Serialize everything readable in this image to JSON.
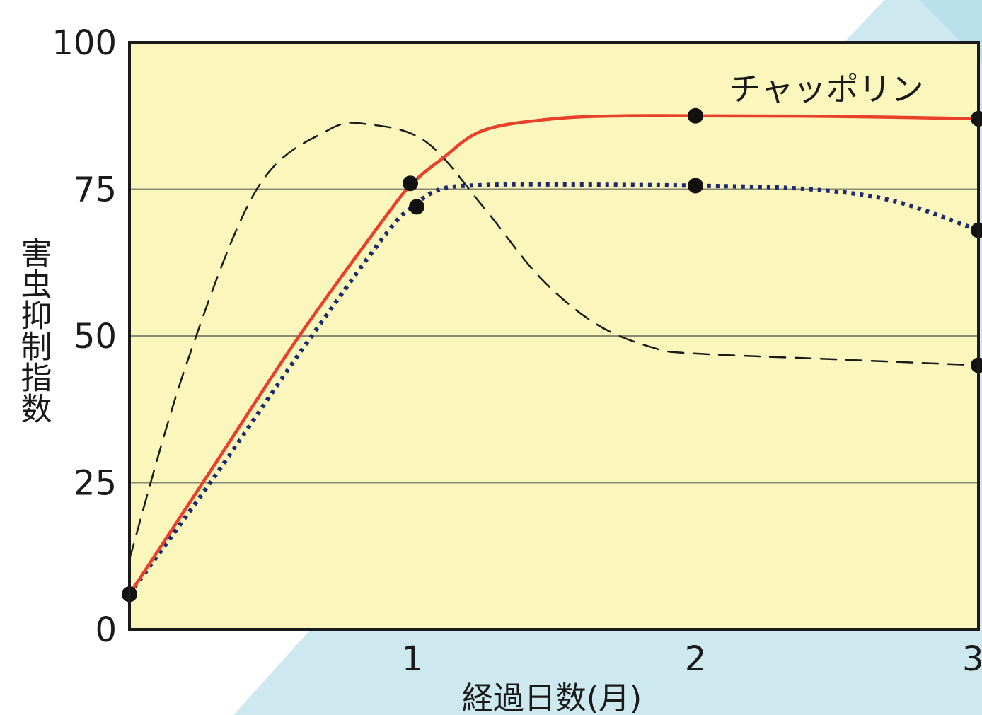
{
  "chart_data": {
    "type": "line",
    "title": "",
    "xlabel": "経過日数(月)",
    "ylabel": "害虫抑制指数",
    "xlim": [
      0,
      3
    ],
    "ylim": [
      0,
      100
    ],
    "x_ticks": [
      "1",
      "2",
      "3"
    ],
    "y_ticks": [
      "0",
      "25",
      "50",
      "75",
      "100"
    ],
    "grid": "horizontal",
    "series": [
      {
        "name": "チャッポリン",
        "style": "solid",
        "color": "#e8402a",
        "curve_x": [
          0,
          0.3,
          0.6,
          0.9,
          1.0,
          1.1,
          1.25,
          1.5,
          1.75,
          2.0,
          2.5,
          3.0
        ],
        "curve_y": [
          6,
          28,
          50,
          70,
          76,
          80,
          85,
          87,
          87.5,
          87.5,
          87.4,
          87
        ],
        "points_x": [
          0,
          1.0,
          2.0,
          3.0
        ],
        "points_y": [
          6,
          76,
          87.5,
          87
        ]
      },
      {
        "style": "dotted",
        "color": "#1d2a6e",
        "curve_x": [
          0,
          0.3,
          0.6,
          0.9,
          1.0,
          1.1,
          1.25,
          1.5,
          2.0,
          2.4,
          2.7,
          3.0
        ],
        "curve_y": [
          6,
          26,
          47,
          67,
          72,
          75,
          75.7,
          75.8,
          75.6,
          75,
          73,
          68
        ],
        "points_x": [
          0,
          1.0,
          2.0,
          3.0
        ],
        "points_y": [
          6,
          72,
          75.6,
          68
        ]
      },
      {
        "style": "dashed",
        "color": "#1a1a1a",
        "curve_x": [
          0,
          0.2,
          0.45,
          0.7,
          0.85,
          1.05,
          1.25,
          1.45,
          1.65,
          1.85,
          2.0,
          2.5,
          3.0
        ],
        "curve_y": [
          12,
          45,
          75,
          85,
          86,
          83,
          72,
          60,
          52,
          48,
          47,
          46,
          45
        ],
        "points_x": [
          3.0
        ],
        "points_y": [
          45
        ]
      }
    ],
    "background_colors": {
      "plot_fill": "#fbf6bc",
      "backdrop_blue": "#cde9ef",
      "grid_line": "#8a8a70",
      "frame": "#1a1a1a",
      "marker": "#111111"
    }
  }
}
